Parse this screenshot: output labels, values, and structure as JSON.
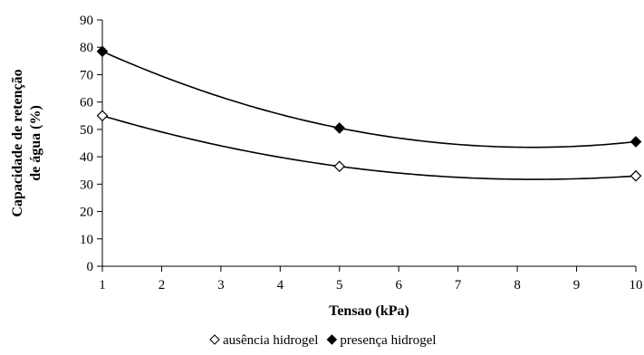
{
  "chart_data": {
    "type": "scatter",
    "title": "",
    "xlabel": "Tensao (kPa)",
    "ylabel": "Capacidade de retenção de água (%)",
    "ylabel_lines": [
      "Capacidade de retenção",
      "de água (%)"
    ],
    "xlim": [
      1,
      10
    ],
    "ylim": [
      0,
      90
    ],
    "xticks": [
      1,
      2,
      3,
      4,
      5,
      6,
      7,
      8,
      9,
      10
    ],
    "yticks": [
      0,
      10,
      20,
      30,
      40,
      50,
      60,
      70,
      80,
      90
    ],
    "grid": false,
    "legend_position": "bottom-center",
    "trendline": "polynomial order 2",
    "series": [
      {
        "name": "ausência hidrogel",
        "marker": "open-diamond",
        "color": "#000000",
        "points": [
          {
            "x": 1,
            "y": 55
          },
          {
            "x": 5,
            "y": 36.5
          },
          {
            "x": 10,
            "y": 33
          }
        ]
      },
      {
        "name": "presença hidrogel",
        "marker": "filled-diamond",
        "color": "#000000",
        "points": [
          {
            "x": 1,
            "y": 78.5
          },
          {
            "x": 5,
            "y": 50.5
          },
          {
            "x": 10,
            "y": 45.5
          }
        ]
      }
    ]
  }
}
